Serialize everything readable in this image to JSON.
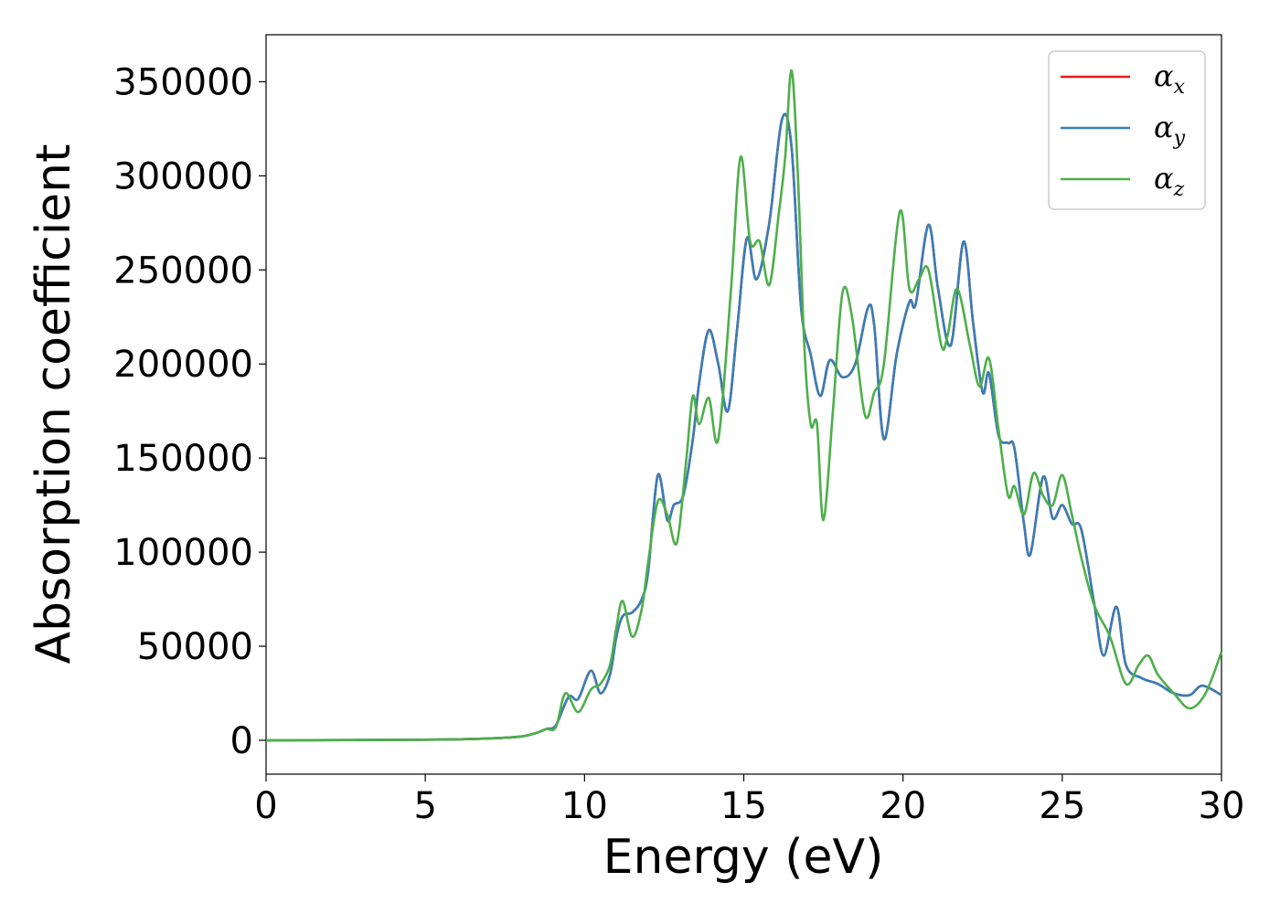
{
  "chart_data": {
    "type": "line",
    "title": "",
    "xlabel": "Energy (eV)",
    "ylabel": "Absorption coefficient",
    "xlim": [
      0,
      30
    ],
    "ylim": [
      -18000,
      375000
    ],
    "xticks": [
      0,
      5,
      10,
      15,
      20,
      25,
      30
    ],
    "yticks": [
      0,
      50000,
      100000,
      150000,
      200000,
      250000,
      300000,
      350000
    ],
    "grid": false,
    "legend_position": "top-right",
    "series": [
      {
        "name": "α",
        "subscript": "x",
        "color": "#e41a1c",
        "points": [
          [
            0,
            0
          ],
          [
            5,
            300
          ],
          [
            7,
            1000
          ],
          [
            8,
            2000
          ],
          [
            8.5,
            4000
          ],
          [
            8.8,
            6000
          ],
          [
            9.1,
            8000
          ],
          [
            9.5,
            23000
          ],
          [
            9.8,
            22000
          ],
          [
            10.2,
            37000
          ],
          [
            10.5,
            25000
          ],
          [
            10.8,
            35000
          ],
          [
            11,
            55000
          ],
          [
            11.2,
            66000
          ],
          [
            11.5,
            68000
          ],
          [
            11.8,
            75000
          ],
          [
            12,
            90000
          ],
          [
            12.3,
            141000
          ],
          [
            12.6,
            117000
          ],
          [
            12.8,
            125000
          ],
          [
            13.1,
            130000
          ],
          [
            13.4,
            160000
          ],
          [
            13.6,
            190000
          ],
          [
            13.9,
            218000
          ],
          [
            14.2,
            200000
          ],
          [
            14.5,
            175000
          ],
          [
            14.8,
            220000
          ],
          [
            15.1,
            267000
          ],
          [
            15.4,
            245000
          ],
          [
            15.8,
            275000
          ],
          [
            16.2,
            330000
          ],
          [
            16.5,
            315000
          ],
          [
            16.8,
            230000
          ],
          [
            17.1,
            205000
          ],
          [
            17.4,
            183000
          ],
          [
            17.7,
            202000
          ],
          [
            18.1,
            193000
          ],
          [
            18.5,
            200000
          ],
          [
            18.9,
            230000
          ],
          [
            19.1,
            220000
          ],
          [
            19.4,
            160000
          ],
          [
            19.8,
            205000
          ],
          [
            20.2,
            233000
          ],
          [
            20.4,
            232000
          ],
          [
            20.8,
            274000
          ],
          [
            21.1,
            240000
          ],
          [
            21.5,
            210000
          ],
          [
            21.9,
            265000
          ],
          [
            22.2,
            222000
          ],
          [
            22.5,
            185000
          ],
          [
            22.7,
            195000
          ],
          [
            23,
            162000
          ],
          [
            23.3,
            158000
          ],
          [
            23.5,
            155000
          ],
          [
            23.8,
            115000
          ],
          [
            24,
            99000
          ],
          [
            24.4,
            140000
          ],
          [
            24.7,
            118000
          ],
          [
            25,
            125000
          ],
          [
            25.3,
            115000
          ],
          [
            25.6,
            112000
          ],
          [
            26,
            73000
          ],
          [
            26.3,
            45000
          ],
          [
            26.7,
            71000
          ],
          [
            27,
            40000
          ],
          [
            27.5,
            33000
          ],
          [
            28,
            30000
          ],
          [
            28.5,
            25000
          ],
          [
            29,
            24000
          ],
          [
            29.4,
            29000
          ],
          [
            30,
            24000
          ]
        ]
      },
      {
        "name": "α",
        "subscript": "y",
        "color": "#377eb8",
        "points": [
          [
            0,
            0
          ],
          [
            5,
            300
          ],
          [
            7,
            1000
          ],
          [
            8,
            2000
          ],
          [
            8.5,
            4000
          ],
          [
            8.8,
            6000
          ],
          [
            9.1,
            8000
          ],
          [
            9.5,
            23000
          ],
          [
            9.8,
            22000
          ],
          [
            10.2,
            37000
          ],
          [
            10.5,
            25000
          ],
          [
            10.8,
            35000
          ],
          [
            11,
            55000
          ],
          [
            11.2,
            66000
          ],
          [
            11.5,
            68000
          ],
          [
            11.8,
            75000
          ],
          [
            12,
            90000
          ],
          [
            12.3,
            141000
          ],
          [
            12.6,
            117000
          ],
          [
            12.8,
            125000
          ],
          [
            13.1,
            130000
          ],
          [
            13.4,
            160000
          ],
          [
            13.6,
            190000
          ],
          [
            13.9,
            218000
          ],
          [
            14.2,
            200000
          ],
          [
            14.5,
            175000
          ],
          [
            14.8,
            220000
          ],
          [
            15.1,
            267000
          ],
          [
            15.4,
            245000
          ],
          [
            15.8,
            275000
          ],
          [
            16.2,
            330000
          ],
          [
            16.5,
            315000
          ],
          [
            16.8,
            230000
          ],
          [
            17.1,
            205000
          ],
          [
            17.4,
            183000
          ],
          [
            17.7,
            202000
          ],
          [
            18.1,
            193000
          ],
          [
            18.5,
            200000
          ],
          [
            18.9,
            230000
          ],
          [
            19.1,
            220000
          ],
          [
            19.4,
            160000
          ],
          [
            19.8,
            205000
          ],
          [
            20.2,
            233000
          ],
          [
            20.4,
            232000
          ],
          [
            20.8,
            274000
          ],
          [
            21.1,
            240000
          ],
          [
            21.5,
            210000
          ],
          [
            21.9,
            265000
          ],
          [
            22.2,
            222000
          ],
          [
            22.5,
            185000
          ],
          [
            22.7,
            195000
          ],
          [
            23,
            162000
          ],
          [
            23.3,
            158000
          ],
          [
            23.5,
            155000
          ],
          [
            23.8,
            115000
          ],
          [
            24,
            99000
          ],
          [
            24.4,
            140000
          ],
          [
            24.7,
            118000
          ],
          [
            25,
            125000
          ],
          [
            25.3,
            115000
          ],
          [
            25.6,
            112000
          ],
          [
            26,
            73000
          ],
          [
            26.3,
            45000
          ],
          [
            26.7,
            71000
          ],
          [
            27,
            40000
          ],
          [
            27.5,
            33000
          ],
          [
            28,
            30000
          ],
          [
            28.5,
            25000
          ],
          [
            29,
            24000
          ],
          [
            29.4,
            29000
          ],
          [
            30,
            24000
          ]
        ]
      },
      {
        "name": "α",
        "subscript": "z",
        "color": "#4daf4a",
        "points": [
          [
            0,
            0
          ],
          [
            5,
            300
          ],
          [
            7,
            1000
          ],
          [
            8,
            2000
          ],
          [
            8.5,
            4000
          ],
          [
            8.8,
            6000
          ],
          [
            9.1,
            7000
          ],
          [
            9.4,
            25000
          ],
          [
            9.8,
            15000
          ],
          [
            10.2,
            27000
          ],
          [
            10.5,
            30000
          ],
          [
            10.8,
            40000
          ],
          [
            11,
            60000
          ],
          [
            11.2,
            74000
          ],
          [
            11.5,
            55000
          ],
          [
            11.8,
            70000
          ],
          [
            12,
            95000
          ],
          [
            12.3,
            127000
          ],
          [
            12.6,
            120000
          ],
          [
            12.9,
            105000
          ],
          [
            13.2,
            150000
          ],
          [
            13.4,
            183000
          ],
          [
            13.6,
            168000
          ],
          [
            13.9,
            182000
          ],
          [
            14.2,
            160000
          ],
          [
            14.6,
            240000
          ],
          [
            14.9,
            310000
          ],
          [
            15.2,
            265000
          ],
          [
            15.5,
            265000
          ],
          [
            15.8,
            242000
          ],
          [
            16.1,
            280000
          ],
          [
            16.3,
            310000
          ],
          [
            16.5,
            356000
          ],
          [
            16.7,
            300000
          ],
          [
            16.9,
            210000
          ],
          [
            17.1,
            168000
          ],
          [
            17.3,
            168000
          ],
          [
            17.5,
            117000
          ],
          [
            17.8,
            175000
          ],
          [
            18.1,
            238000
          ],
          [
            18.4,
            225000
          ],
          [
            18.8,
            173000
          ],
          [
            19.1,
            185000
          ],
          [
            19.4,
            200000
          ],
          [
            19.9,
            281000
          ],
          [
            20.2,
            240000
          ],
          [
            20.5,
            245000
          ],
          [
            20.8,
            250000
          ],
          [
            21.2,
            210000
          ],
          [
            21.4,
            215000
          ],
          [
            21.7,
            240000
          ],
          [
            22.1,
            210000
          ],
          [
            22.4,
            188000
          ],
          [
            22.7,
            203000
          ],
          [
            23,
            165000
          ],
          [
            23.3,
            130000
          ],
          [
            23.5,
            135000
          ],
          [
            23.8,
            120000
          ],
          [
            24.1,
            142000
          ],
          [
            24.4,
            130000
          ],
          [
            24.7,
            125000
          ],
          [
            25,
            141000
          ],
          [
            25.3,
            120000
          ],
          [
            25.6,
            97000
          ],
          [
            26,
            72000
          ],
          [
            26.5,
            55000
          ],
          [
            27,
            30000
          ],
          [
            27.4,
            40000
          ],
          [
            27.7,
            45000
          ],
          [
            28,
            35000
          ],
          [
            28.5,
            25000
          ],
          [
            29,
            17000
          ],
          [
            29.5,
            25000
          ],
          [
            30,
            47000
          ]
        ]
      }
    ]
  }
}
